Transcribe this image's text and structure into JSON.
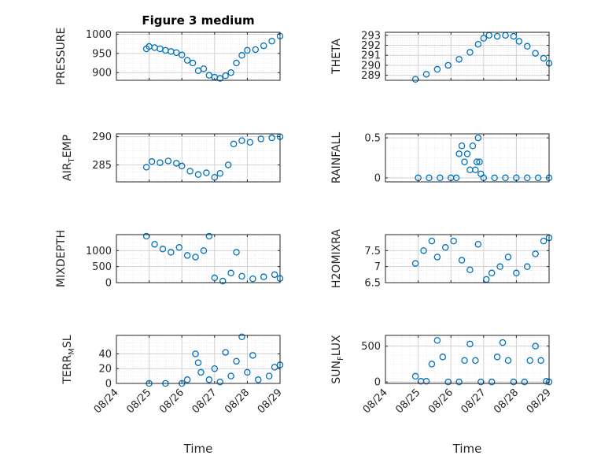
{
  "chart_data": {
    "title": "Figure 3 medium",
    "xlabel": "Time",
    "x_ticks": [
      "08/24",
      "08/25",
      "08/26",
      "08/27",
      "08/28",
      "08/29"
    ],
    "xlim": [
      "08/24",
      "08/29"
    ],
    "grid": "on (major and minor)",
    "marker": "open circle",
    "color": "#0072BD",
    "panels": [
      {
        "type": "scatter",
        "ylabel": "PRESSURE",
        "ylim": [
          880,
          1005
        ],
        "y_ticks": [
          900,
          950,
          1000
        ],
        "series": [
          {
            "points": [
              [
                "08/24 22:00",
                962
              ],
              [
                "08/25 00:00",
                968
              ],
              [
                "08/25 04:00",
                965
              ],
              [
                "08/25 08:00",
                962
              ],
              [
                "08/25 12:00",
                958
              ],
              [
                "08/25 16:00",
                955
              ],
              [
                "08/25 20:00",
                952
              ],
              [
                "08/26 00:00",
                946
              ],
              [
                "08/26 04:00",
                932
              ],
              [
                "08/26 08:00",
                925
              ],
              [
                "08/26 12:00",
                905
              ],
              [
                "08/26 16:00",
                910
              ],
              [
                "08/26 20:00",
                893
              ],
              [
                "08/27 00:00",
                888
              ],
              [
                "08/27 04:00",
                885
              ],
              [
                "08/27 08:00",
                892
              ],
              [
                "08/27 12:00",
                900
              ],
              [
                "08/27 16:00",
                925
              ],
              [
                "08/27 20:00",
                945
              ],
              [
                "08/28 00:00",
                958
              ],
              [
                "08/28 06:00",
                960
              ],
              [
                "08/28 12:00",
                970
              ],
              [
                "08/28 18:00",
                982
              ],
              [
                "08/29 00:00",
                995
              ]
            ]
          }
        ]
      },
      {
        "type": "scatter",
        "ylabel": "THETA",
        "ylim": [
          288.5,
          293.3
        ],
        "y_ticks": [
          289,
          290,
          291,
          292,
          293
        ],
        "series": [
          {
            "points": [
              [
                "08/24 22:00",
                288.6
              ],
              [
                "08/25 06:00",
                289.1
              ],
              [
                "08/25 14:00",
                289.6
              ],
              [
                "08/25 22:00",
                290.0
              ],
              [
                "08/26 06:00",
                290.6
              ],
              [
                "08/26 14:00",
                291.3
              ],
              [
                "08/26 20:00",
                292.1
              ],
              [
                "08/27 00:00",
                292.7
              ],
              [
                "08/27 04:00",
                293.0
              ],
              [
                "08/27 10:00",
                292.9
              ],
              [
                "08/27 16:00",
                293.0
              ],
              [
                "08/27 22:00",
                292.9
              ],
              [
                "08/28 02:00",
                292.4
              ],
              [
                "08/28 08:00",
                291.9
              ],
              [
                "08/28 14:00",
                291.2
              ],
              [
                "08/28 20:00",
                290.7
              ],
              [
                "08/29 00:00",
                290.2
              ]
            ]
          }
        ]
      },
      {
        "type": "scatter",
        "ylabel": "AIR_TEMP",
        "ylim": [
          282,
          290.5
        ],
        "y_ticks": [
          285,
          290
        ],
        "series": [
          {
            "points": [
              [
                "08/24 22:00",
                284.6
              ],
              [
                "08/25 02:00",
                285.6
              ],
              [
                "08/25 08:00",
                285.4
              ],
              [
                "08/25 14:00",
                285.7
              ],
              [
                "08/25 20:00",
                285.3
              ],
              [
                "08/26 00:00",
                284.8
              ],
              [
                "08/26 06:00",
                283.9
              ],
              [
                "08/26 12:00",
                283.3
              ],
              [
                "08/26 18:00",
                283.6
              ],
              [
                "08/27 00:00",
                282.8
              ],
              [
                "08/27 04:00",
                283.5
              ],
              [
                "08/27 10:00",
                285.0
              ],
              [
                "08/27 14:00",
                288.7
              ],
              [
                "08/27 20:00",
                289.3
              ],
              [
                "08/28 02:00",
                289.0
              ],
              [
                "08/28 10:00",
                289.6
              ],
              [
                "08/28 18:00",
                289.8
              ],
              [
                "08/29 00:00",
                290.0
              ]
            ]
          }
        ]
      },
      {
        "type": "scatter",
        "ylabel": "RAINFALL",
        "ylim": [
          -0.05,
          0.55
        ],
        "y_ticks": [
          0,
          0.5
        ],
        "series": [
          {
            "points": [
              [
                "08/25 00:00",
                0
              ],
              [
                "08/25 08:00",
                0
              ],
              [
                "08/25 16:00",
                0
              ],
              [
                "08/26 00:00",
                0
              ],
              [
                "08/26 04:00",
                0
              ],
              [
                "08/26 06:00",
                0.3
              ],
              [
                "08/26 08:00",
                0.4
              ],
              [
                "08/26 10:00",
                0.2
              ],
              [
                "08/26 12:00",
                0.3
              ],
              [
                "08/26 14:00",
                0.1
              ],
              [
                "08/26 16:00",
                0.4
              ],
              [
                "08/26 18:00",
                0.1
              ],
              [
                "08/26 19:00",
                0.2
              ],
              [
                "08/26 20:00",
                0.5
              ],
              [
                "08/26 21:00",
                0.2
              ],
              [
                "08/26 22:00",
                0.05
              ],
              [
                "08/27 00:00",
                0
              ],
              [
                "08/27 08:00",
                0
              ],
              [
                "08/27 16:00",
                0
              ],
              [
                "08/28 00:00",
                0
              ],
              [
                "08/28 08:00",
                0
              ],
              [
                "08/28 16:00",
                0
              ],
              [
                "08/29 00:00",
                0
              ]
            ]
          }
        ]
      },
      {
        "type": "scatter",
        "ylabel": "MIXDEPTH",
        "ylim": [
          0,
          1500
        ],
        "y_ticks": [
          0,
          500,
          1000
        ],
        "series": [
          {
            "points": [
              [
                "08/24 22:00",
                1450
              ],
              [
                "08/25 04:00",
                1200
              ],
              [
                "08/25 10:00",
                1050
              ],
              [
                "08/25 16:00",
                950
              ],
              [
                "08/25 22:00",
                1100
              ],
              [
                "08/26 04:00",
                850
              ],
              [
                "08/26 10:00",
                800
              ],
              [
                "08/26 16:00",
                1000
              ],
              [
                "08/26 20:00",
                1450
              ],
              [
                "08/27 00:00",
                150
              ],
              [
                "08/27 06:00",
                50
              ],
              [
                "08/27 12:00",
                300
              ],
              [
                "08/27 16:00",
                950
              ],
              [
                "08/27 20:00",
                200
              ],
              [
                "08/28 04:00",
                120
              ],
              [
                "08/28 12:00",
                180
              ],
              [
                "08/28 20:00",
                250
              ],
              [
                "08/29 00:00",
                130
              ]
            ]
          }
        ]
      },
      {
        "type": "scatter",
        "ylabel": "H2OMIXRA",
        "ylim": [
          6.5,
          8.0
        ],
        "y_ticks": [
          6.5,
          7,
          7.5
        ],
        "series": [
          {
            "points": [
              [
                "08/24 22:00",
                7.1
              ],
              [
                "08/25 04:00",
                7.5
              ],
              [
                "08/25 10:00",
                7.8
              ],
              [
                "08/25 14:00",
                7.3
              ],
              [
                "08/25 20:00",
                7.6
              ],
              [
                "08/26 02:00",
                7.8
              ],
              [
                "08/26 08:00",
                7.2
              ],
              [
                "08/26 14:00",
                6.9
              ],
              [
                "08/26 20:00",
                7.7
              ],
              [
                "08/27 02:00",
                6.6
              ],
              [
                "08/27 06:00",
                6.8
              ],
              [
                "08/27 12:00",
                7.0
              ],
              [
                "08/27 18:00",
                7.3
              ],
              [
                "08/28 00:00",
                6.8
              ],
              [
                "08/28 08:00",
                7.0
              ],
              [
                "08/28 14:00",
                7.4
              ],
              [
                "08/28 20:00",
                7.8
              ],
              [
                "08/29 00:00",
                7.9
              ]
            ]
          }
        ]
      },
      {
        "type": "scatter",
        "ylabel": "TERR_MSL",
        "ylim": [
          0,
          65
        ],
        "y_ticks": [
          0,
          20,
          40
        ],
        "series": [
          {
            "points": [
              [
                "08/25 00:00",
                0
              ],
              [
                "08/25 12:00",
                0
              ],
              [
                "08/26 00:00",
                0
              ],
              [
                "08/26 04:00",
                5
              ],
              [
                "08/26 10:00",
                40
              ],
              [
                "08/26 12:00",
                28
              ],
              [
                "08/26 14:00",
                15
              ],
              [
                "08/26 20:00",
                5
              ],
              [
                "08/27 00:00",
                20
              ],
              [
                "08/27 04:00",
                2
              ],
              [
                "08/27 08:00",
                42
              ],
              [
                "08/27 12:00",
                10
              ],
              [
                "08/27 16:00",
                30
              ],
              [
                "08/27 20:00",
                63
              ],
              [
                "08/28 00:00",
                15
              ],
              [
                "08/28 04:00",
                38
              ],
              [
                "08/28 08:00",
                5
              ],
              [
                "08/28 16:00",
                10
              ],
              [
                "08/28 20:00",
                22
              ],
              [
                "08/29 00:00",
                25
              ]
            ]
          }
        ]
      },
      {
        "type": "scatter",
        "ylabel": "SUN_FLUX",
        "ylim": [
          -20,
          650
        ],
        "y_ticks": [
          0,
          500
        ],
        "series": [
          {
            "points": [
              [
                "08/24 22:00",
                80
              ],
              [
                "08/25 02:00",
                10
              ],
              [
                "08/25 06:00",
                10
              ],
              [
                "08/25 10:00",
                250
              ],
              [
                "08/25 14:00",
                580
              ],
              [
                "08/25 18:00",
                350
              ],
              [
                "08/25 22:00",
                0
              ],
              [
                "08/26 06:00",
                0
              ],
              [
                "08/26 10:00",
                300
              ],
              [
                "08/26 14:00",
                530
              ],
              [
                "08/26 18:00",
                300
              ],
              [
                "08/26 22:00",
                0
              ],
              [
                "08/27 06:00",
                0
              ],
              [
                "08/27 10:00",
                350
              ],
              [
                "08/27 14:00",
                550
              ],
              [
                "08/27 18:00",
                300
              ],
              [
                "08/27 22:00",
                0
              ],
              [
                "08/28 06:00",
                0
              ],
              [
                "08/28 10:00",
                300
              ],
              [
                "08/28 14:00",
                500
              ],
              [
                "08/28 18:00",
                300
              ],
              [
                "08/28 22:00",
                10
              ],
              [
                "08/29 00:00",
                0
              ]
            ]
          }
        ]
      }
    ]
  }
}
